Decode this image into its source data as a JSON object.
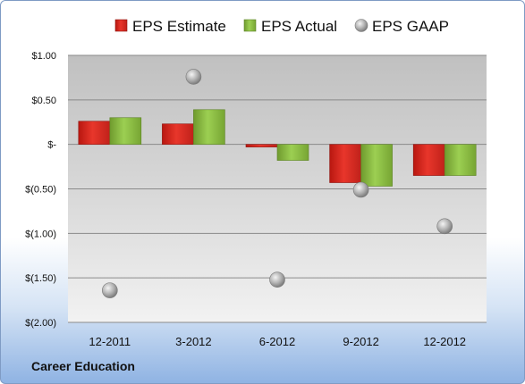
{
  "company": "Career Education",
  "chart_data": {
    "type": "bar",
    "categories": [
      "12-2011",
      "3-2012",
      "6-2012",
      "9-2012",
      "12-2012"
    ],
    "series": [
      {
        "name": "EPS Estimate",
        "kind": "bar",
        "values": [
          0.26,
          0.23,
          -0.03,
          -0.43,
          -0.35
        ],
        "color": "#d9261c"
      },
      {
        "name": "EPS Actual",
        "kind": "bar",
        "values": [
          0.3,
          0.39,
          -0.18,
          -0.47,
          -0.35
        ],
        "color": "#8cc63f"
      },
      {
        "name": "EPS GAAP",
        "kind": "scatter",
        "values": [
          -1.64,
          0.76,
          -1.52,
          -0.51,
          -0.92
        ],
        "color": "#a6a6a6"
      }
    ],
    "yticks": [
      1.0,
      0.5,
      0.0,
      -0.5,
      -1.0,
      -1.5,
      -2.0
    ],
    "ytick_labels": [
      "$1.00",
      "$0.50",
      "$-",
      "$(0.50)",
      "$(1.00)",
      "$(1.50)",
      "$(2.00)"
    ],
    "ylim": [
      -2.0,
      1.0
    ],
    "grid": true,
    "legend_position": "top"
  }
}
